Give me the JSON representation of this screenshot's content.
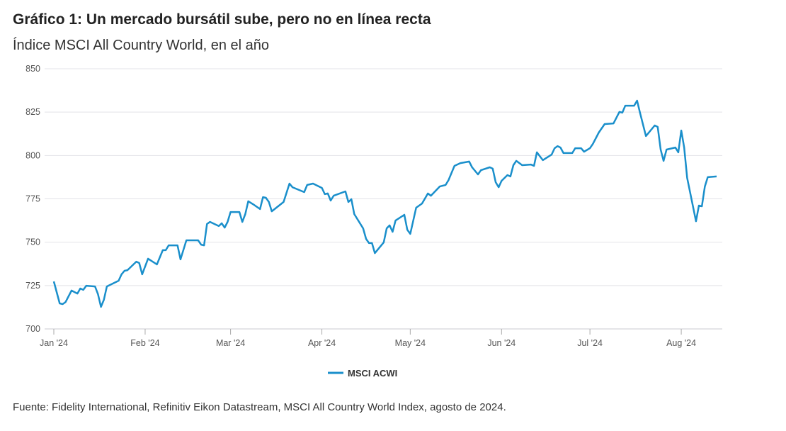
{
  "chart_data": {
    "type": "line",
    "title": "Gráfico 1: Un mercado bursátil sube, pero no en línea recta",
    "subtitle": "Índice MSCI All Country World, en el año",
    "source": "Fuente: Fidelity International, Refinitiv Eikon Datastream, MSCI All Country World Index, agosto de 2024.",
    "xlabel": "",
    "ylabel": "",
    "ylim": [
      700,
      850
    ],
    "yticks": [
      700,
      725,
      750,
      775,
      800,
      825,
      850
    ],
    "xticks": [
      {
        "label": "Jan '24",
        "day": 0
      },
      {
        "label": "Feb '24",
        "day": 31
      },
      {
        "label": "Mar '24",
        "day": 60
      },
      {
        "label": "Apr '24",
        "day": 91
      },
      {
        "label": "May '24",
        "day": 121
      },
      {
        "label": "Jun '24",
        "day": 152
      },
      {
        "label": "Jul '24",
        "day": 182
      },
      {
        "label": "Aug '24",
        "day": 213
      }
    ],
    "x_unit": "days since 1 Jan 2024",
    "grid": true,
    "legend_position": "bottom-center",
    "series": [
      {
        "name": "MSCI ACWI",
        "color": "#1a8fcb",
        "points": [
          [
            0,
            727.4
          ],
          [
            2,
            714.7
          ],
          [
            3,
            714.3
          ],
          [
            4,
            715.5
          ],
          [
            6,
            722.1
          ],
          [
            8,
            720.4
          ],
          [
            9,
            723.3
          ],
          [
            10,
            722.5
          ],
          [
            11,
            724.9
          ],
          [
            14,
            724.5
          ],
          [
            15,
            720.0
          ],
          [
            16,
            712.7
          ],
          [
            17,
            716.8
          ],
          [
            18,
            724.5
          ],
          [
            22,
            727.8
          ],
          [
            23,
            731.5
          ],
          [
            24,
            733.5
          ],
          [
            25,
            733.9
          ],
          [
            28,
            738.8
          ],
          [
            29,
            738.0
          ],
          [
            30,
            731.5
          ],
          [
            32,
            740.5
          ],
          [
            35,
            737.2
          ],
          [
            37,
            745.4
          ],
          [
            38,
            745.4
          ],
          [
            39,
            748.2
          ],
          [
            42,
            748.2
          ],
          [
            43,
            740.1
          ],
          [
            45,
            751.1
          ],
          [
            49,
            751.1
          ],
          [
            50,
            748.6
          ],
          [
            51,
            748.2
          ],
          [
            52,
            760.5
          ],
          [
            53,
            761.7
          ],
          [
            56,
            759.3
          ],
          [
            57,
            760.9
          ],
          [
            58,
            758.4
          ],
          [
            59,
            761.7
          ],
          [
            60,
            767.4
          ],
          [
            63,
            767.4
          ],
          [
            64,
            761.7
          ],
          [
            65,
            766.2
          ],
          [
            66,
            773.6
          ],
          [
            68,
            771.5
          ],
          [
            70,
            769.1
          ],
          [
            71,
            776.0
          ],
          [
            72,
            775.6
          ],
          [
            73,
            773.2
          ],
          [
            74,
            767.8
          ],
          [
            78,
            773.2
          ],
          [
            80,
            783.8
          ],
          [
            81,
            781.7
          ],
          [
            85,
            778.9
          ],
          [
            86,
            783.0
          ],
          [
            88,
            783.8
          ],
          [
            91,
            781.3
          ],
          [
            92,
            777.7
          ],
          [
            93,
            778.1
          ],
          [
            94,
            774.0
          ],
          [
            95,
            776.8
          ],
          [
            99,
            779.3
          ],
          [
            100,
            773.2
          ],
          [
            101,
            774.8
          ],
          [
            102,
            766.2
          ],
          [
            105,
            758.0
          ],
          [
            106,
            751.9
          ],
          [
            107,
            749.5
          ],
          [
            108,
            749.5
          ],
          [
            109,
            743.7
          ],
          [
            112,
            749.9
          ],
          [
            113,
            758.0
          ],
          [
            114,
            759.7
          ],
          [
            115,
            756.0
          ],
          [
            116,
            762.5
          ],
          [
            119,
            765.8
          ],
          [
            120,
            757.2
          ],
          [
            121,
            754.8
          ],
          [
            123,
            769.9
          ],
          [
            125,
            772.3
          ],
          [
            127,
            778.1
          ],
          [
            128,
            776.8
          ],
          [
            131,
            782.1
          ],
          [
            133,
            783.0
          ],
          [
            134,
            785.8
          ],
          [
            136,
            794.0
          ],
          [
            138,
            795.6
          ],
          [
            141,
            796.5
          ],
          [
            142,
            793.2
          ],
          [
            144,
            789.1
          ],
          [
            145,
            791.5
          ],
          [
            148,
            793.2
          ],
          [
            149,
            792.4
          ],
          [
            150,
            784.6
          ],
          [
            151,
            781.7
          ],
          [
            152,
            785.4
          ],
          [
            154,
            788.7
          ],
          [
            155,
            787.9
          ],
          [
            156,
            794.4
          ],
          [
            157,
            796.9
          ],
          [
            159,
            794.4
          ],
          [
            162,
            794.8
          ],
          [
            163,
            794.0
          ],
          [
            164,
            801.8
          ],
          [
            166,
            797.3
          ],
          [
            169,
            800.5
          ],
          [
            170,
            804.2
          ],
          [
            171,
            805.4
          ],
          [
            172,
            804.6
          ],
          [
            173,
            801.4
          ],
          [
            176,
            801.4
          ],
          [
            177,
            804.2
          ],
          [
            179,
            804.2
          ],
          [
            180,
            802.2
          ],
          [
            182,
            804.2
          ],
          [
            183,
            806.7
          ],
          [
            185,
            813.2
          ],
          [
            187,
            818.1
          ],
          [
            190,
            818.5
          ],
          [
            192,
            825.1
          ],
          [
            193,
            824.7
          ],
          [
            194,
            828.7
          ],
          [
            197,
            828.7
          ],
          [
            198,
            831.6
          ],
          [
            199,
            824.7
          ],
          [
            201,
            811.2
          ],
          [
            204,
            817.3
          ],
          [
            205,
            816.5
          ],
          [
            206,
            803.4
          ],
          [
            207,
            796.9
          ],
          [
            208,
            803.4
          ],
          [
            211,
            804.6
          ],
          [
            212,
            801.8
          ],
          [
            213,
            814.4
          ],
          [
            214,
            804.6
          ],
          [
            215,
            787.1
          ],
          [
            218,
            762.1
          ],
          [
            219,
            771.1
          ],
          [
            220,
            770.7
          ],
          [
            221,
            782.1
          ],
          [
            222,
            787.5
          ],
          [
            225,
            787.9
          ]
        ]
      }
    ]
  }
}
